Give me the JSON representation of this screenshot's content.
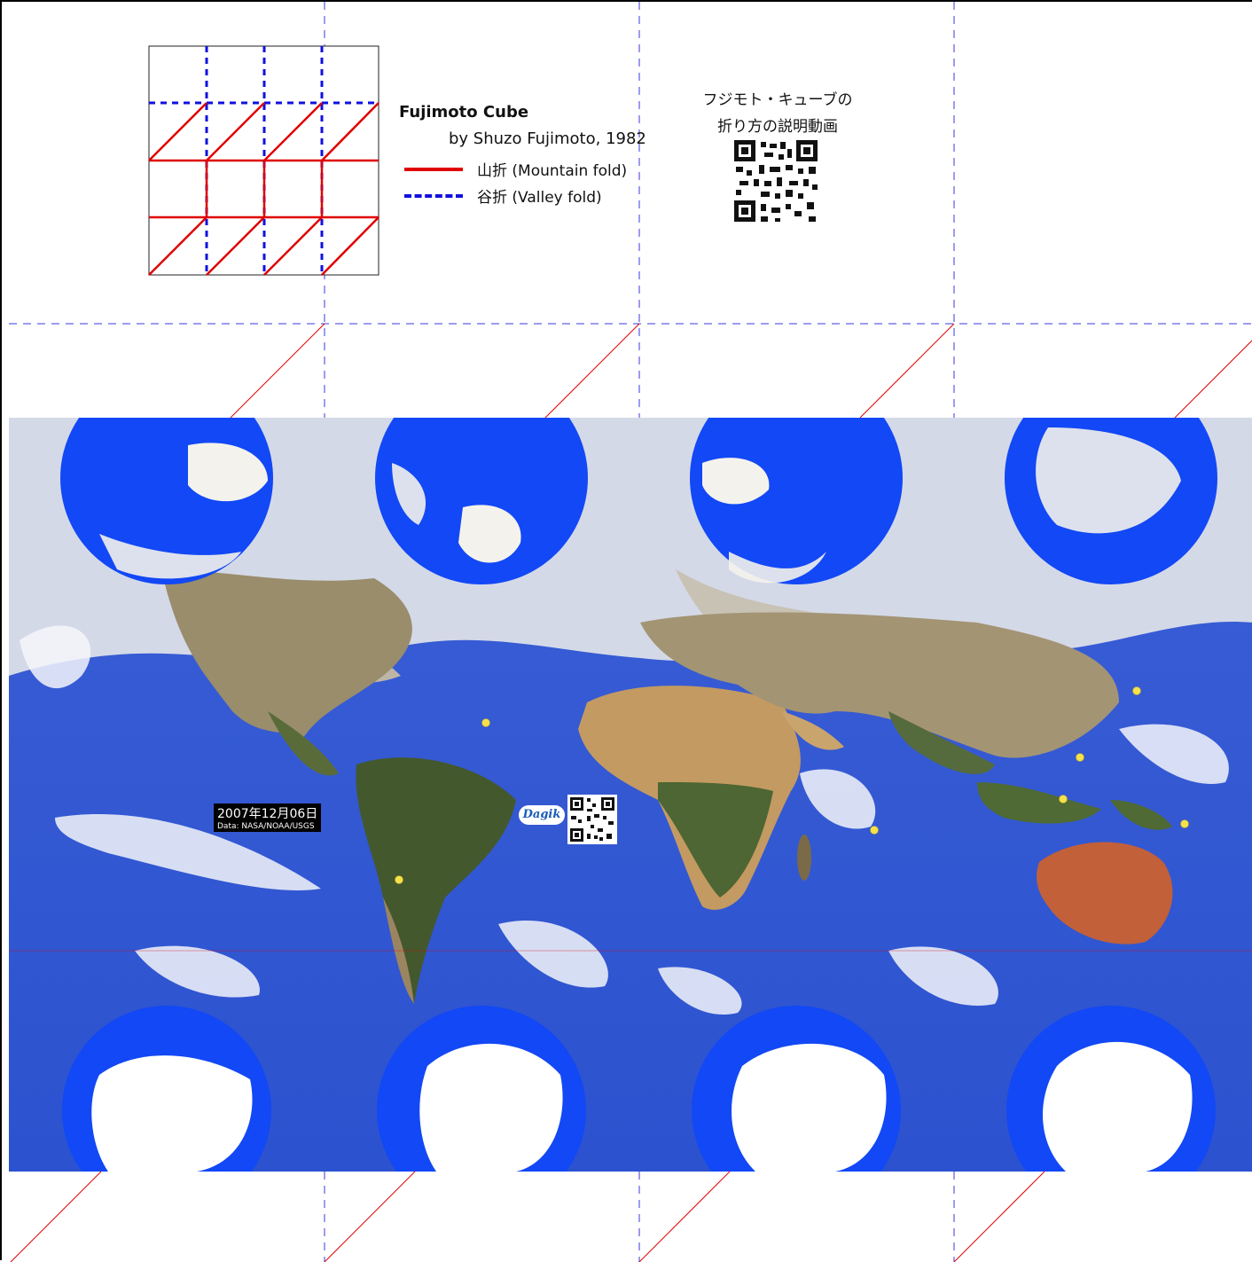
{
  "legend": {
    "title": "Fujimoto Cube",
    "byline": "by Shuzo Fujimoto, 1982",
    "mountain_fold": "山折 (Mountain fold)",
    "valley_fold": "谷折 (Valley fold)",
    "mountain_color": "#e00000",
    "valley_color": "#1010e0"
  },
  "qr_note": {
    "line1": "フジモト・キューブの",
    "line2": "折り方の説明動画"
  },
  "map_stamp": {
    "date": "2007年12月06日",
    "credit": "Data: NASA/NOAA/USGS"
  },
  "brand_logo": "Dagik Earth",
  "colors": {
    "ocean": "#2f56d8",
    "polar_disk": "#1248f5",
    "ice": "#ffffff",
    "land": "#8c7a52",
    "forest": "#3f5a2c",
    "desert": "#c79a63",
    "cloud": "#f2f4f8",
    "marker": "#f5e14a"
  },
  "icons": [
    "qr-code-icon",
    "dagik-logo-icon"
  ]
}
